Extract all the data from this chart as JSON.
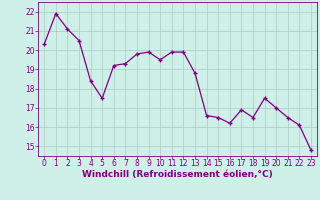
{
  "x": [
    0,
    1,
    2,
    3,
    4,
    5,
    6,
    7,
    8,
    9,
    10,
    11,
    12,
    13,
    14,
    15,
    16,
    17,
    18,
    19,
    20,
    21,
    22,
    23
  ],
  "y": [
    20.3,
    21.9,
    21.1,
    20.5,
    18.4,
    17.5,
    19.2,
    19.3,
    19.8,
    19.9,
    19.5,
    19.9,
    19.9,
    18.8,
    16.6,
    16.5,
    16.2,
    16.9,
    16.5,
    17.5,
    17.0,
    16.5,
    16.1,
    14.8
  ],
  "line_color": "#800080",
  "marker_color": "#800080",
  "bg_color": "#cff0e8",
  "grid_color": "#aaccc4",
  "xlabel": "Windchill (Refroidissement éolien,°C)",
  "xlabel_color": "#800080",
  "xlabel_fontsize": 6.5,
  "tick_color": "#800080",
  "tick_fontsize": 5.5,
  "ylim": [
    14.5,
    22.5
  ],
  "xlim": [
    -0.5,
    23.5
  ],
  "yticks": [
    15,
    16,
    17,
    18,
    19,
    20,
    21,
    22
  ],
  "xticks": [
    0,
    1,
    2,
    3,
    4,
    5,
    6,
    7,
    8,
    9,
    10,
    11,
    12,
    13,
    14,
    15,
    16,
    17,
    18,
    19,
    20,
    21,
    22,
    23
  ]
}
